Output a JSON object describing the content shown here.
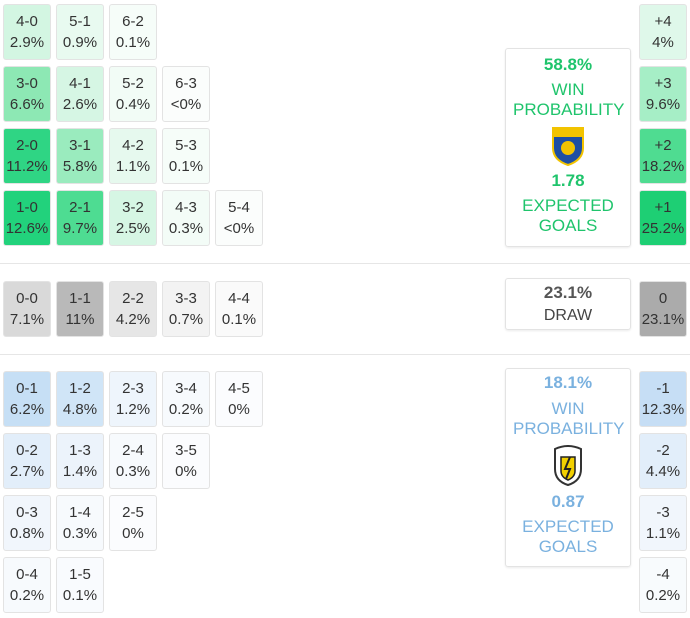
{
  "home": {
    "rows": [
      [
        {
          "score": "4-0",
          "prob": "2.9%",
          "color": "#d3f6e2"
        },
        {
          "score": "5-1",
          "prob": "0.9%",
          "color": "#e8faf0"
        },
        {
          "score": "6-2",
          "prob": "0.1%",
          "color": "#f6fdf9"
        }
      ],
      [
        {
          "score": "3-0",
          "prob": "6.6%",
          "color": "#8de8b4"
        },
        {
          "score": "4-1",
          "prob": "2.6%",
          "color": "#d6f6e4"
        },
        {
          "score": "5-2",
          "prob": "0.4%",
          "color": "#f2fcf6"
        },
        {
          "score": "6-3",
          "prob": "<0%",
          "color": "#fbfdfc"
        }
      ],
      [
        {
          "score": "2-0",
          "prob": "11.2%",
          "color": "#2fd584"
        },
        {
          "score": "3-1",
          "prob": "5.8%",
          "color": "#9aebbe"
        },
        {
          "score": "4-2",
          "prob": "1.1%",
          "color": "#e6f9ee"
        },
        {
          "score": "5-3",
          "prob": "0.1%",
          "color": "#f6fdf9"
        }
      ],
      [
        {
          "score": "1-0",
          "prob": "12.6%",
          "color": "#22d27c"
        },
        {
          "score": "2-1",
          "prob": "9.7%",
          "color": "#4edc92"
        },
        {
          "score": "3-2",
          "prob": "2.5%",
          "color": "#d6f6e4"
        },
        {
          "score": "4-3",
          "prob": "0.3%",
          "color": "#f3fcf7"
        },
        {
          "score": "5-4",
          "prob": "<0%",
          "color": "#fbfdfc"
        }
      ]
    ],
    "margins": [
      {
        "label": "+4",
        "prob": "4%",
        "color": "#dff8ea"
      },
      {
        "label": "+3",
        "prob": "9.6%",
        "color": "#a6eec6"
      },
      {
        "label": "+2",
        "prob": "18.2%",
        "color": "#4fdc91"
      },
      {
        "label": "+1",
        "prob": "25.2%",
        "color": "#1ecf74"
      }
    ],
    "summary": {
      "win_pct": "58.8%",
      "win_label": "WIN PROBABILITY",
      "xg": "1.78",
      "xg_label": "EXPECTED GOALS"
    }
  },
  "draw": {
    "rows": [
      [
        {
          "score": "0-0",
          "prob": "7.1%",
          "color": "#d9d9d9"
        },
        {
          "score": "1-1",
          "prob": "11%",
          "color": "#b9b9b9"
        },
        {
          "score": "2-2",
          "prob": "4.2%",
          "color": "#e6e6e6"
        },
        {
          "score": "3-3",
          "prob": "0.7%",
          "color": "#f3f3f3"
        },
        {
          "score": "4-4",
          "prob": "0.1%",
          "color": "#fafafa"
        }
      ]
    ],
    "margins": [
      {
        "label": "0",
        "prob": "23.1%",
        "color": "#ababab"
      }
    ],
    "summary": {
      "pct": "23.1%",
      "label": "DRAW"
    }
  },
  "away": {
    "rows": [
      [
        {
          "score": "0-1",
          "prob": "6.2%",
          "color": "#c6dff5"
        },
        {
          "score": "1-2",
          "prob": "4.8%",
          "color": "#d0e5f7"
        },
        {
          "score": "2-3",
          "prob": "1.2%",
          "color": "#eef5fc"
        },
        {
          "score": "3-4",
          "prob": "0.2%",
          "color": "#f7fafd"
        },
        {
          "score": "4-5",
          "prob": "0%",
          "color": "#fbfcfe"
        }
      ],
      [
        {
          "score": "0-2",
          "prob": "2.7%",
          "color": "#e2eefa"
        },
        {
          "score": "1-3",
          "prob": "1.4%",
          "color": "#ecf3fb"
        },
        {
          "score": "2-4",
          "prob": "0.3%",
          "color": "#f7fafd"
        },
        {
          "score": "3-5",
          "prob": "0%",
          "color": "#fbfcfe"
        }
      ],
      [
        {
          "score": "0-3",
          "prob": "0.8%",
          "color": "#f1f6fc"
        },
        {
          "score": "1-4",
          "prob": "0.3%",
          "color": "#f7fafd"
        },
        {
          "score": "2-5",
          "prob": "0%",
          "color": "#fbfcfe"
        }
      ],
      [
        {
          "score": "0-4",
          "prob": "0.2%",
          "color": "#f7fafd"
        },
        {
          "score": "1-5",
          "prob": "0.1%",
          "color": "#f9fbfe"
        }
      ]
    ],
    "margins": [
      {
        "label": "-1",
        "prob": "12.3%",
        "color": "#c6def5"
      },
      {
        "label": "-2",
        "prob": "4.4%",
        "color": "#e2eefa"
      },
      {
        "label": "-3",
        "prob": "1.1%",
        "color": "#f1f6fc"
      },
      {
        "label": "-4",
        "prob": "0.2%",
        "color": "#f8fbfd"
      }
    ],
    "summary": {
      "win_pct": "18.1%",
      "win_label": "WIN PROBABILITY",
      "xg": "0.87",
      "xg_label": "EXPECTED GOALS"
    }
  }
}
